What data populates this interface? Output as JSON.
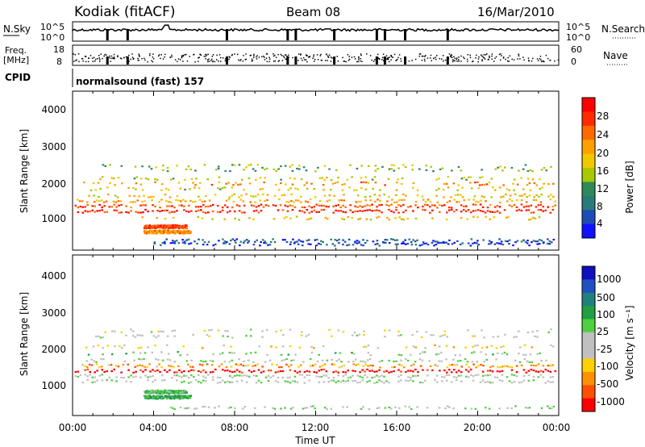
{
  "header": {
    "station": "Kodiak (fitACF)",
    "beam": "Beam 08",
    "date": "16/Mar/2010"
  },
  "noise_panel": {
    "left_label": "N.Sky",
    "right_label": "N.Search",
    "right_ticks": [
      "10^5",
      "10^0"
    ],
    "left_ticks": [
      "10^5",
      "10^0"
    ]
  },
  "freq_panel": {
    "left_label_line1": "Freq.",
    "left_label_line2": "[MHz]",
    "left_ticks": [
      "18",
      "8"
    ],
    "right_label": "Nave",
    "right_ticks": [
      "60",
      "0"
    ]
  },
  "cpid_panel": {
    "label": "CPID",
    "text": "normalsound (fast) 157"
  },
  "x_axis": {
    "label": "Time UT",
    "ticks": [
      "00:00",
      "04:00",
      "08:00",
      "12:00",
      "16:00",
      "20:00",
      "00:00"
    ]
  },
  "power_panel": {
    "ylabel": "Slant Range [km]",
    "yticks": [
      "4000",
      "3000",
      "2000",
      "1000"
    ],
    "colorbar_label": "Power [dB]",
    "colorbar_ticks": [
      "28",
      "24",
      "20",
      "16",
      "12",
      "8",
      "4"
    ],
    "colors": [
      "#ff0000",
      "#ff2a00",
      "#ff6a00",
      "#ffa000",
      "#f0c800",
      "#a8c800",
      "#2e8b57",
      "#2a7a7a",
      "#1e4cb4",
      "#1010ff"
    ]
  },
  "velocity_panel": {
    "ylabel": "Slant Range [km]",
    "yticks": [
      "4000",
      "3000",
      "2000",
      "1000"
    ],
    "colorbar_label": "Velocity [m s⁻¹]",
    "colorbar_ticks": [
      "1000",
      "500",
      "100",
      "25",
      "-25",
      "-100",
      "-500",
      "-1000"
    ],
    "colors": [
      "#1010c0",
      "#2050c0",
      "#208080",
      "#20a040",
      "#50d040",
      "#c0c0c0",
      "#c0c0c0",
      "#ffd000",
      "#ff9000",
      "#ff5000",
      "#ff0000"
    ]
  },
  "chart_data": [
    {
      "type": "heatmap",
      "title": "Power",
      "xlabel": "Time UT",
      "ylabel": "Slant Range [km]",
      "xlim": [
        0,
        24
      ],
      "ylim": [
        0,
        4600
      ],
      "zlabel": "Power [dB]",
      "zlim": [
        0,
        32
      ],
      "bands": [
        {
          "range_km": 2450,
          "t_start": 1.0,
          "t_end": 23.8,
          "density": 0.25,
          "value": 14
        },
        {
          "range_km": 2350,
          "t_start": 1.0,
          "t_end": 23.8,
          "density": 0.25,
          "value": 12
        },
        {
          "range_km": 2100,
          "t_start": 1.2,
          "t_end": 23.8,
          "density": 0.3,
          "value": 16
        },
        {
          "range_km": 1950,
          "t_start": 0.4,
          "t_end": 23.8,
          "density": 0.35,
          "value": 22
        },
        {
          "range_km": 1800,
          "t_start": 0.4,
          "t_end": 23.6,
          "density": 0.35,
          "value": 16
        },
        {
          "range_km": 1600,
          "t_start": 0.3,
          "t_end": 23.8,
          "density": 0.4,
          "value": 18
        },
        {
          "range_km": 1450,
          "t_start": 0.2,
          "t_end": 23.9,
          "density": 0.55,
          "value": 20
        },
        {
          "range_km": 1300,
          "t_start": 0.1,
          "t_end": 23.9,
          "density": 0.7,
          "value": 26
        },
        {
          "range_km": 1150,
          "t_start": 0.1,
          "t_end": 23.9,
          "density": 0.7,
          "value": 28
        },
        {
          "range_km": 950,
          "t_start": 3.2,
          "t_end": 23.5,
          "density": 0.3,
          "value": 18
        },
        {
          "range_km": 700,
          "t_start": 3.5,
          "t_end": 5.6,
          "density": 0.8,
          "value": 26
        },
        {
          "range_km": 550,
          "t_start": 3.5,
          "t_end": 5.8,
          "density": 0.8,
          "value": 22
        },
        {
          "range_km": 300,
          "t_start": 4.0,
          "t_end": 23.8,
          "density": 0.55,
          "value": 6
        },
        {
          "range_km": 200,
          "t_start": 3.8,
          "t_end": 23.8,
          "density": 0.5,
          "value": 4
        }
      ]
    },
    {
      "type": "heatmap",
      "title": "Velocity",
      "xlabel": "Time UT",
      "ylabel": "Slant Range [km]",
      "xlim": [
        0,
        24
      ],
      "ylim": [
        0,
        4600
      ],
      "zlabel": "Velocity [m s-1]",
      "zlim": [
        -1000,
        1000
      ],
      "bands": [
        {
          "range_km": 2450,
          "t_start": 1.0,
          "t_end": 23.8,
          "density": 0.2,
          "value": -100
        },
        {
          "range_km": 2300,
          "t_start": 1.0,
          "t_end": 23.8,
          "density": 0.25,
          "value": -100
        },
        {
          "range_km": 2000,
          "t_start": 0.4,
          "t_end": 23.8,
          "density": 0.35,
          "value": -300
        },
        {
          "range_km": 1800,
          "t_start": 0.4,
          "t_end": 23.6,
          "density": 0.3,
          "value": 100
        },
        {
          "range_km": 1600,
          "t_start": 0.3,
          "t_end": 23.8,
          "density": 0.45,
          "value": 0
        },
        {
          "range_km": 1450,
          "t_start": 0.2,
          "t_end": 23.9,
          "density": 0.55,
          "value": -500
        },
        {
          "range_km": 1300,
          "t_start": 0.1,
          "t_end": 23.9,
          "density": 0.7,
          "value": -1000
        },
        {
          "range_km": 1150,
          "t_start": 0.1,
          "t_end": 23.9,
          "density": 0.65,
          "value": 0
        },
        {
          "range_km": 1000,
          "t_start": 0.1,
          "t_end": 23.9,
          "density": 0.5,
          "value": 0
        },
        {
          "range_km": 700,
          "t_start": 3.5,
          "t_end": 5.6,
          "density": 0.8,
          "value": 200
        },
        {
          "range_km": 550,
          "t_start": 3.5,
          "t_end": 5.8,
          "density": 0.8,
          "value": 300
        },
        {
          "range_km": 250,
          "t_start": 4.0,
          "t_end": 23.8,
          "density": 0.3,
          "value": 0
        }
      ]
    }
  ]
}
